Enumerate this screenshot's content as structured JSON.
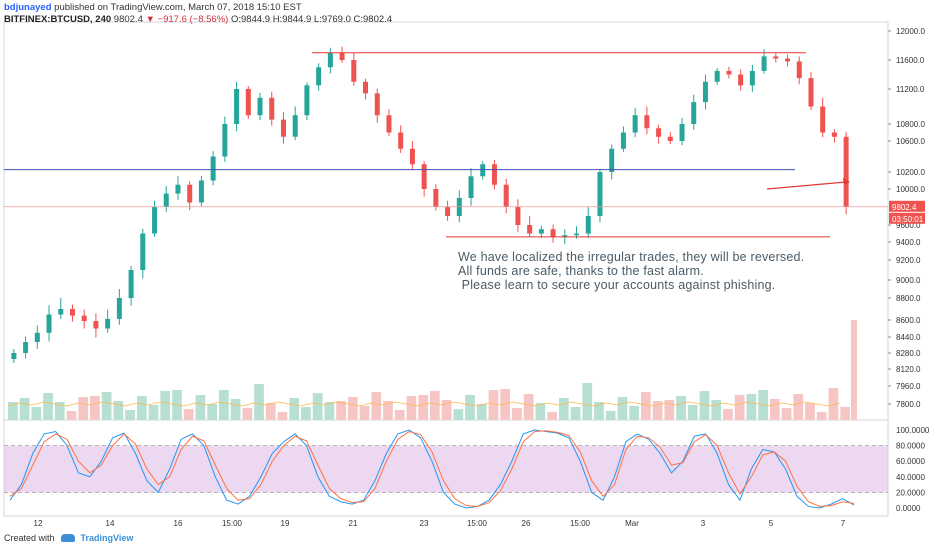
{
  "header": {
    "line1_user": "bdjunayed",
    "line1_rest": " published on TradingView.com, March 07, 2018 15:10 EST",
    "symbol": "BITFINEX:BTCUSD, 240",
    "last": "9802.4",
    "change": "▼ −917.6 (−8.56%)",
    "ohlc": "O:9844.9 H:9844.9 L:9769.0 C:9802.4"
  },
  "annotation": {
    "line1": "We have localized the irregular trades, they will be reversed.",
    "line2": "All funds are safe, thanks to the fast alarm.",
    "line3": " Please learn to secure your accounts against phishing."
  },
  "price_labels": {
    "last": "9802.4",
    "countdown": "03:50:01"
  },
  "footer": {
    "created": "Created with",
    "brand": "TradingView"
  },
  "colors": {
    "up": "#26a69a",
    "down": "#ef5350",
    "level_red": "#e53935",
    "level_blue": "#3f51b5",
    "stoch_k": "#2196f3",
    "stoch_d": "#ff7043",
    "stoch_band": "#e1bee7"
  },
  "chart_data": [
    {
      "type": "candlestick",
      "yaxis_ticks": [
        12000,
        11600,
        11200,
        10800,
        10600,
        10200,
        10000,
        9600,
        9400,
        9200,
        9000,
        8800,
        8600,
        8440,
        8280,
        8120,
        7960,
        7800
      ],
      "ytick_labels": [
        "12000.0",
        "11600.0",
        "11200.0",
        "10800.0",
        "10600.0",
        "10200.0",
        "10000.0",
        "9600.0",
        "9400.0",
        "9200.0",
        "9000.0",
        "8800.0",
        "8600.0",
        "8440.0",
        "8280.0",
        "8120.0",
        "7960.0",
        "7800.0"
      ],
      "xtick_labels": [
        "12",
        "14",
        "16",
        "15:00",
        "19",
        "21",
        "23",
        "15:00",
        "26",
        "15:00",
        "Mar",
        "3",
        "5",
        "7"
      ],
      "horizontal_levels": [
        {
          "value": 11700,
          "color": "red"
        },
        {
          "value": 10230,
          "color": "blue"
        },
        {
          "value": 9460,
          "color": "red"
        }
      ],
      "close_path": [
        8280,
        8390,
        8480,
        8650,
        8700,
        8640,
        8590,
        8520,
        8610,
        8800,
        9100,
        9500,
        9800,
        9950,
        10050,
        9850,
        10100,
        10400,
        10800,
        11200,
        10900,
        11100,
        10850,
        10650,
        10900,
        11250,
        11500,
        11700,
        11600,
        11300,
        11150,
        10900,
        10700,
        10500,
        10300,
        10000,
        9800,
        9700,
        9900,
        10150,
        10300,
        10050,
        9800,
        9600,
        9500,
        9550,
        9460,
        9480,
        9500,
        9700,
        10200,
        10500,
        10700,
        10900,
        10750,
        10650,
        10600,
        10800,
        11050,
        11300,
        11450,
        11400,
        11250,
        11450,
        11650,
        11620,
        11580,
        11350,
        11000,
        10700,
        10650,
        9802.4
      ],
      "volume_note": "volume histogram with moving average"
    },
    {
      "type": "line",
      "title": "Stochastic RSI",
      "yaxis_ticks": [
        "100.0000",
        "80.0000",
        "60.0000",
        "40.0000",
        "20.0000",
        "0.0000"
      ],
      "ylim": [
        0,
        100
      ],
      "band": [
        20,
        80
      ],
      "series": [
        {
          "values": [
            10,
            30,
            70,
            95,
            98,
            80,
            45,
            40,
            60,
            90,
            96,
            70,
            35,
            20,
            50,
            88,
            95,
            80,
            40,
            10,
            5,
            15,
            40,
            70,
            85,
            95,
            80,
            40,
            15,
            8,
            5,
            10,
            35,
            70,
            95,
            100,
            90,
            60,
            20,
            5,
            0,
            2,
            10,
            30,
            60,
            95,
            100,
            98,
            96,
            90,
            60,
            20,
            10,
            40,
            85,
            95,
            88,
            70,
            45,
            60,
            92,
            95,
            70,
            30,
            10,
            50,
            75,
            72,
            50,
            15,
            2,
            0,
            5,
            12,
            4
          ]
        },
        {
          "values": [
            15,
            25,
            55,
            85,
            95,
            88,
            60,
            45,
            55,
            80,
            95,
            82,
            50,
            30,
            40,
            75,
            92,
            86,
            55,
            25,
            10,
            12,
            30,
            60,
            80,
            92,
            86,
            55,
            25,
            12,
            7,
            8,
            25,
            60,
            88,
            98,
            94,
            72,
            35,
            12,
            3,
            2,
            7,
            22,
            50,
            85,
            98,
            99,
            97,
            93,
            72,
            35,
            15,
            30,
            75,
            92,
            90,
            78,
            55,
            58,
            85,
            94,
            80,
            45,
            18,
            40,
            68,
            72,
            60,
            28,
            8,
            2,
            3,
            8,
            6
          ]
        }
      ]
    }
  ]
}
